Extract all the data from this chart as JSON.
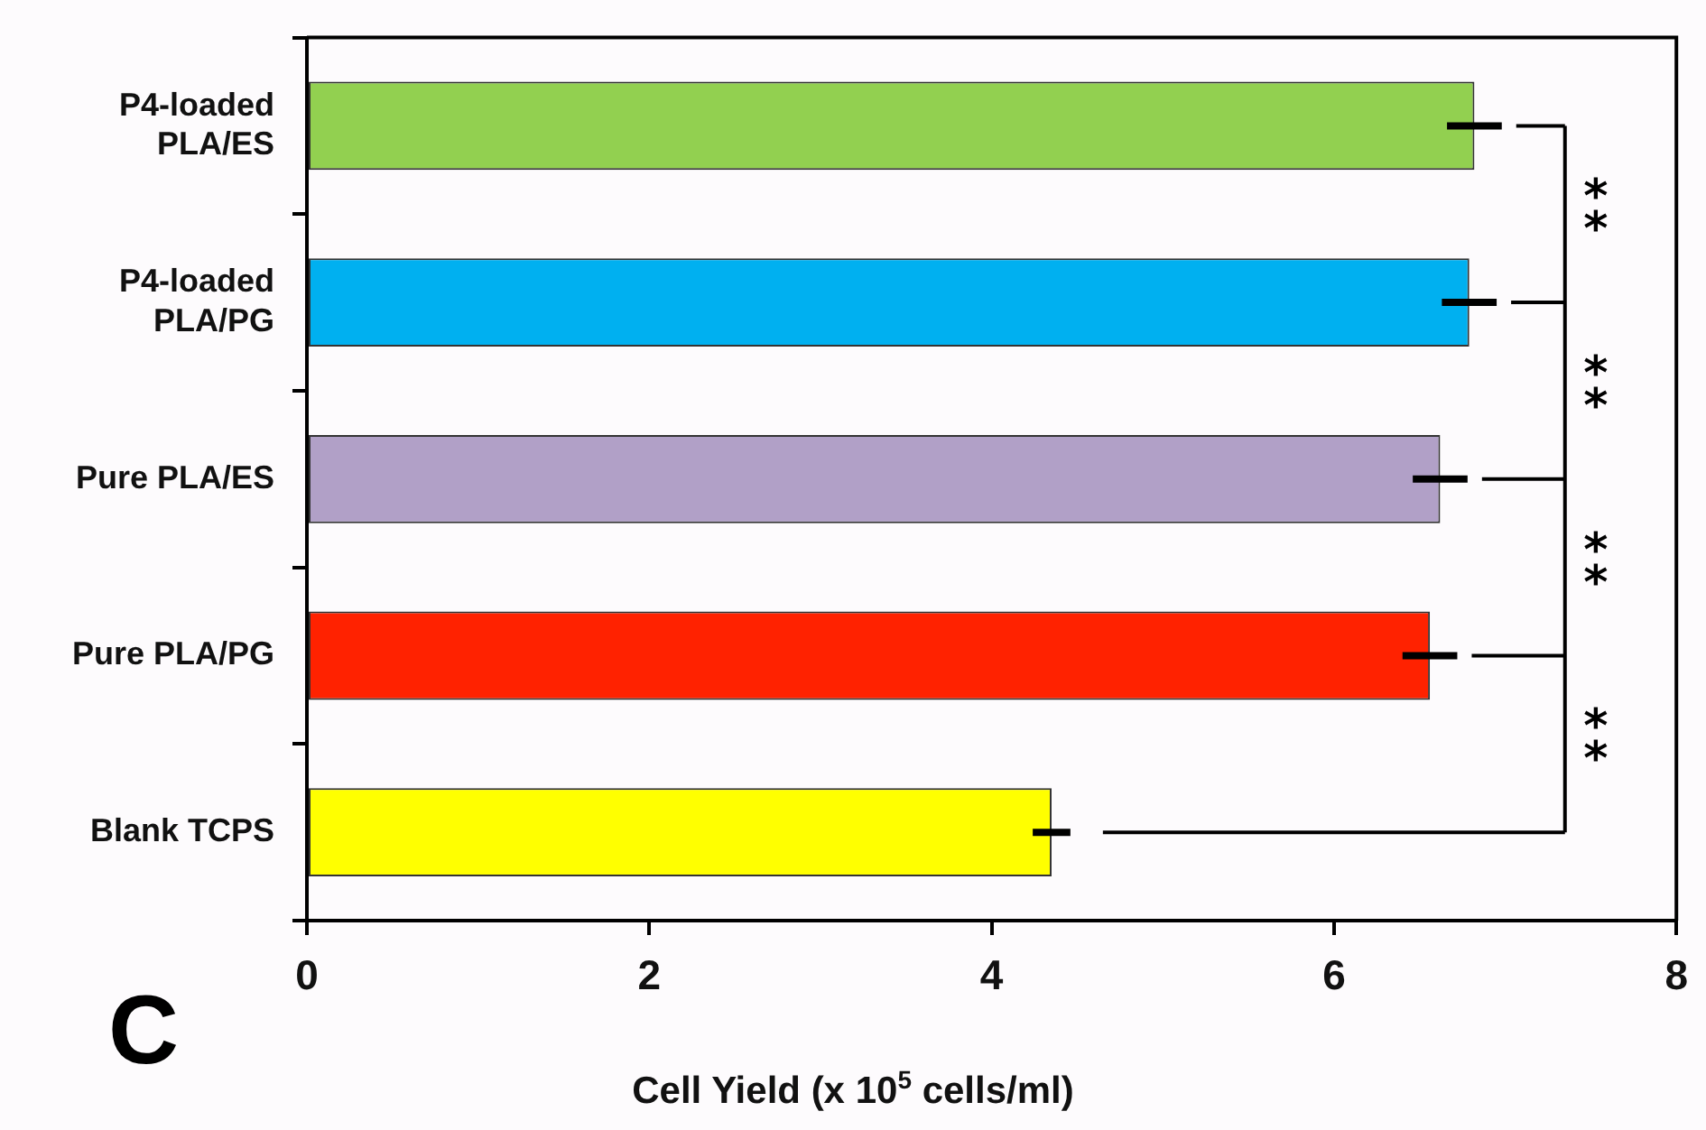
{
  "chart_data": {
    "type": "bar",
    "orientation": "horizontal",
    "xlabel": "Cell Yield (x 10$^{5}$ cells/ml)",
    "categories": [
      "P4-loaded PLA/ES",
      "P4-loaded PLA/PG",
      "Pure PLA/ES",
      "Pure PLA/PG",
      "Blank TCPS"
    ],
    "values": [
      6.82,
      6.79,
      6.62,
      6.56,
      4.35
    ],
    "errors": [
      0.16,
      0.16,
      0.16,
      0.16,
      0.11
    ],
    "colors": [
      "#92d050",
      "#00b0f0",
      "#b1a0c7",
      "#ff2200",
      "#ffff00"
    ],
    "xlim": [
      0,
      8
    ],
    "xticks": [
      0,
      2,
      4,
      6,
      8
    ],
    "grid": false,
    "legend": false,
    "annotations": [
      "**",
      "**",
      "**",
      "**",
      "C"
    ]
  }
}
